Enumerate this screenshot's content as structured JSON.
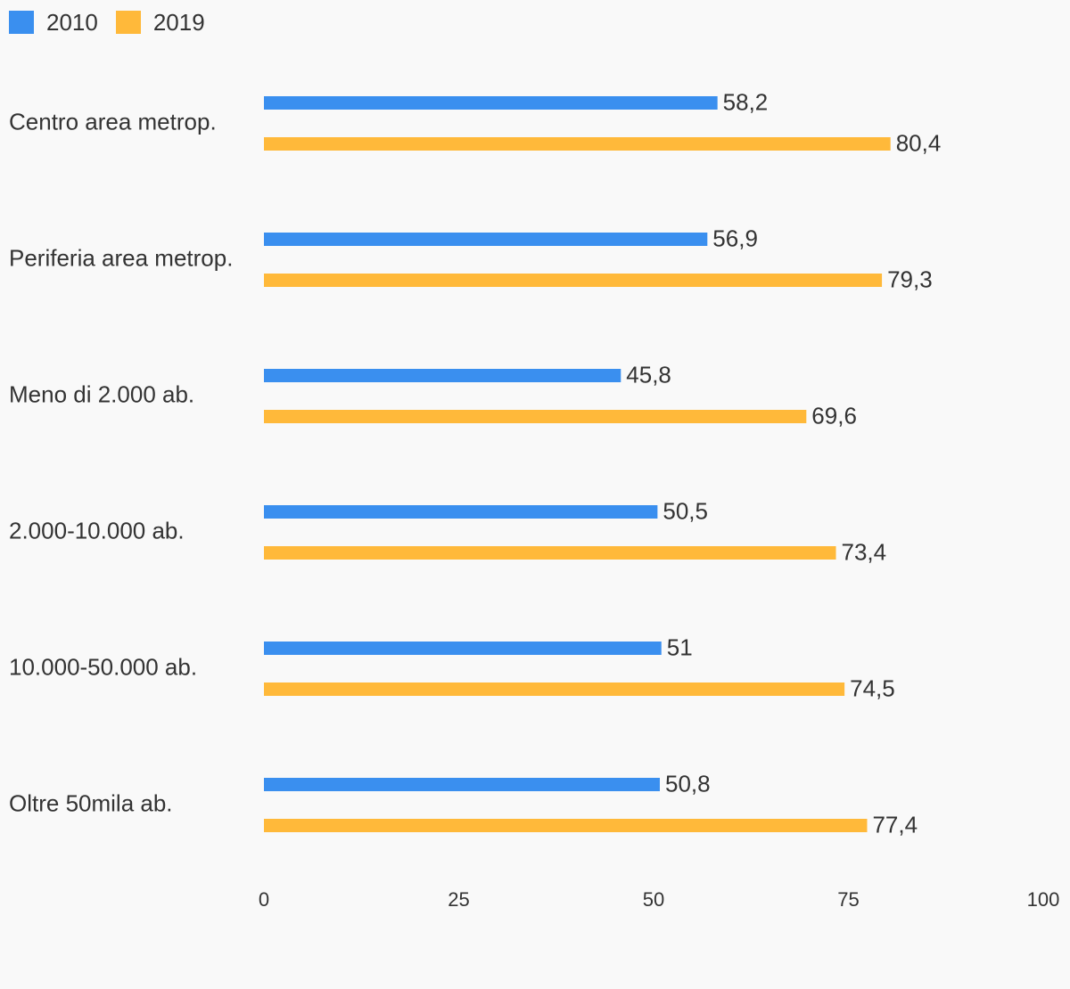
{
  "chart_data": {
    "type": "bar",
    "orientation": "horizontal",
    "categories": [
      "Centro area metrop.",
      "Periferia area metrop.",
      "Meno di 2.000 ab.",
      "2.000-10.000 ab.",
      "10.000-50.000 ab.",
      "Oltre 50mila ab."
    ],
    "series": [
      {
        "name": "2010",
        "color": "#3a8fef",
        "values": [
          58.2,
          56.9,
          45.8,
          50.5,
          51,
          50.8
        ],
        "labels": [
          "58,2",
          "56,9",
          "45,8",
          "50,5",
          "51",
          "50,8"
        ]
      },
      {
        "name": "2019",
        "color": "#ffb93a",
        "values": [
          80.4,
          79.3,
          69.6,
          73.4,
          74.5,
          77.4
        ],
        "labels": [
          "80,4",
          "79,3",
          "69,6",
          "73,4",
          "74,5",
          "77,4"
        ]
      }
    ],
    "xlim": [
      0,
      100
    ],
    "xticks": [
      0,
      25,
      50,
      75,
      100
    ],
    "xtick_labels": [
      "0",
      "25",
      "50",
      "75",
      "100"
    ],
    "legend_position": "top-left",
    "grid": false
  }
}
